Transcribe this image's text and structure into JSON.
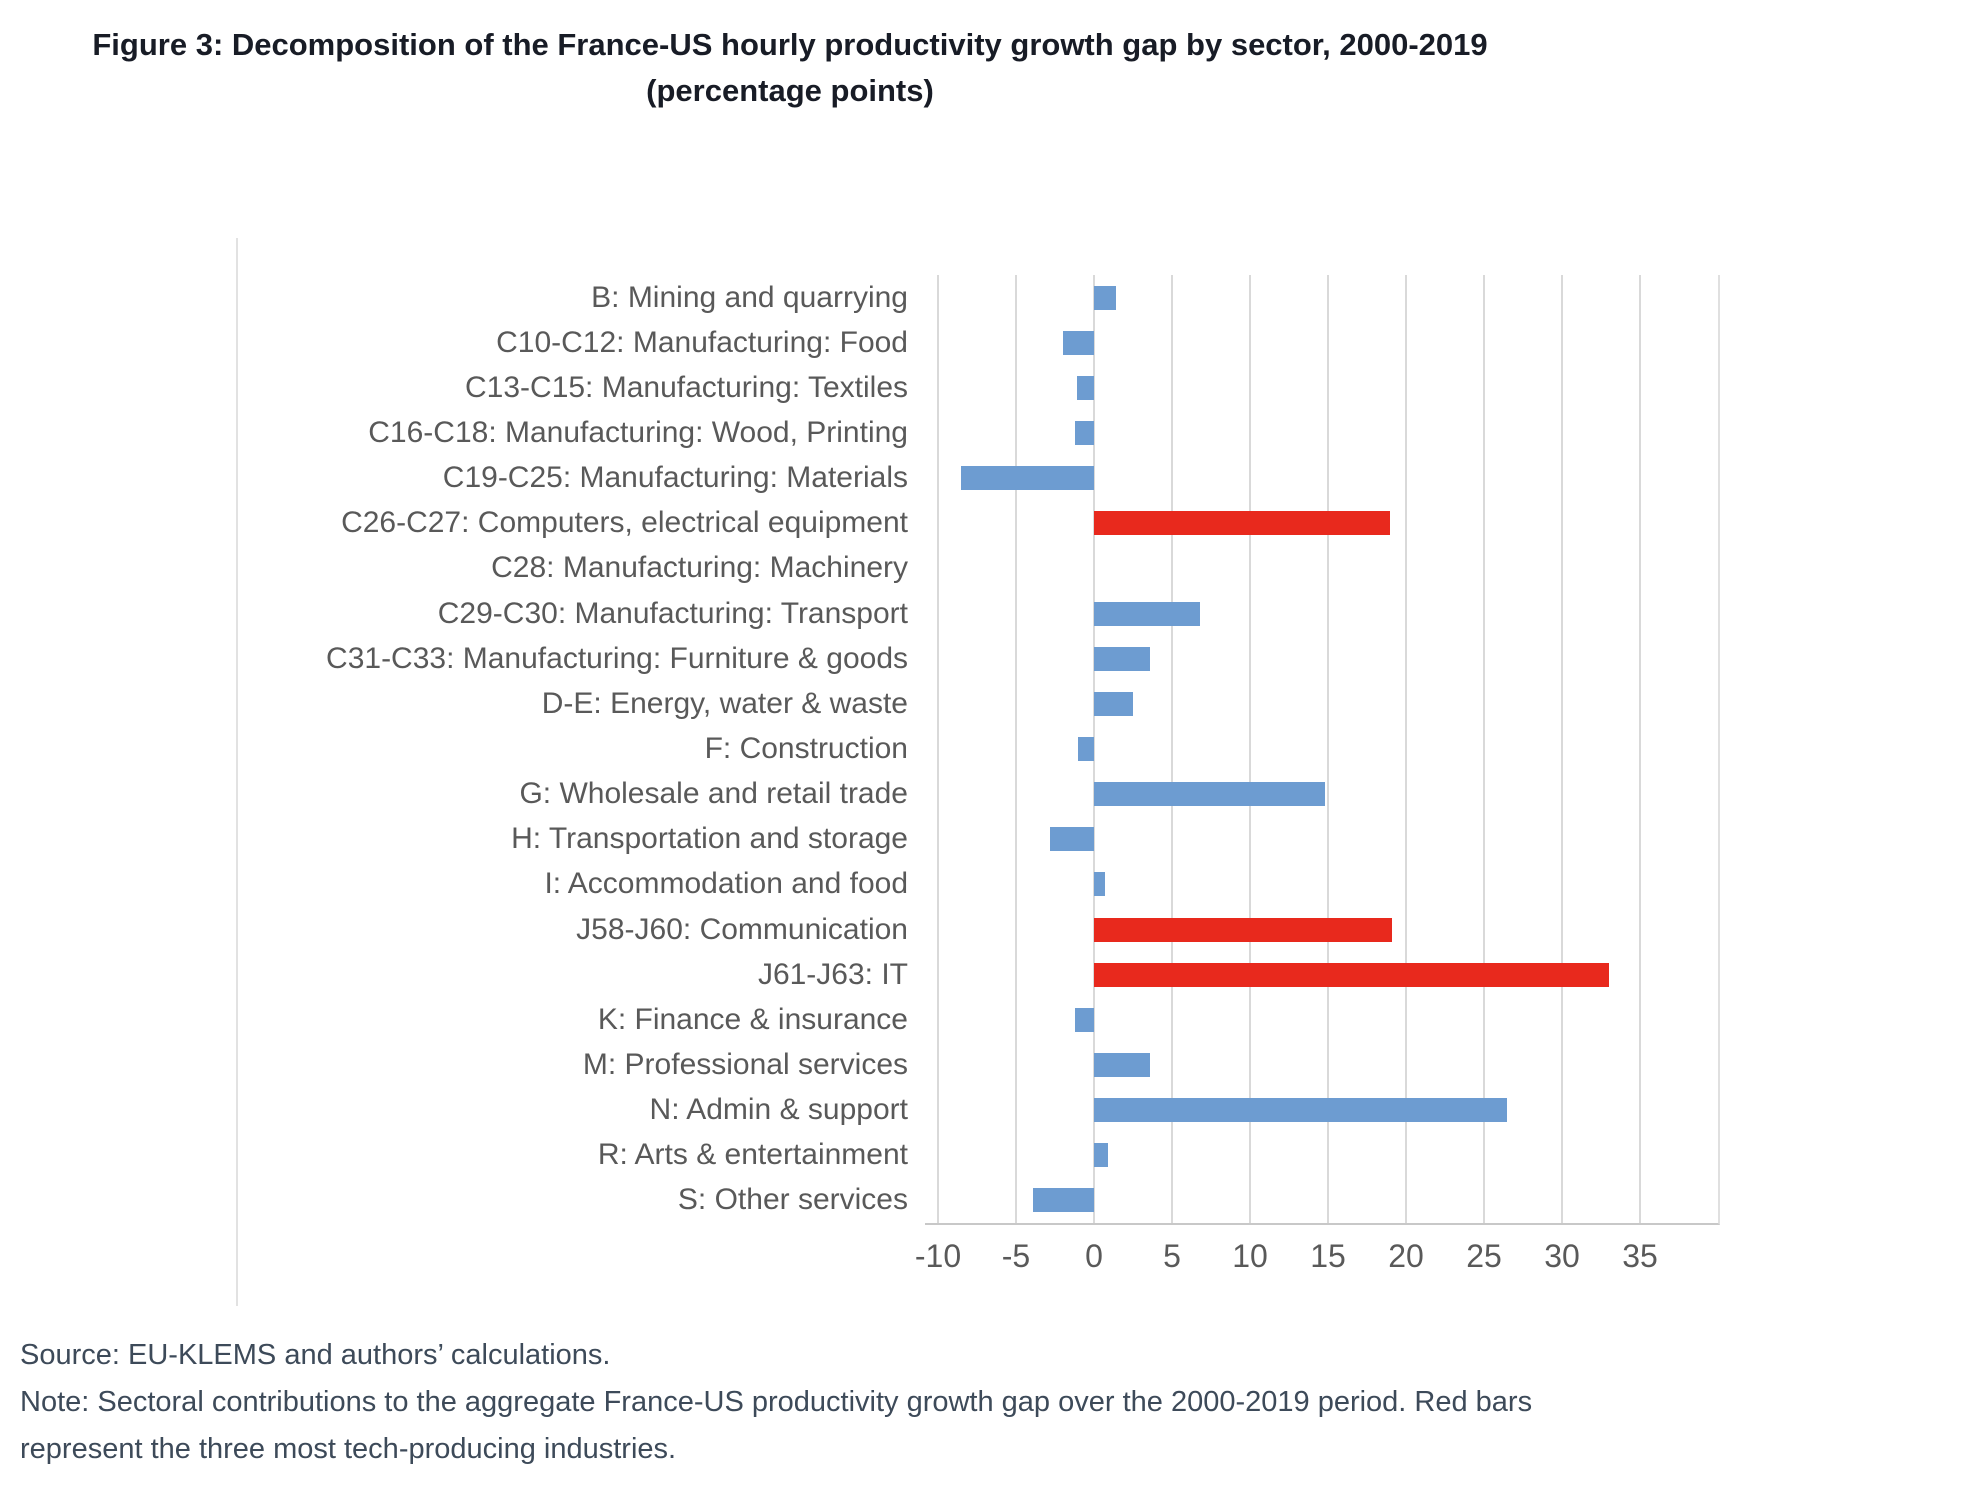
{
  "title": {
    "line1": "Figure 3: Decomposition of the France-US hourly productivity growth gap by sector, 2000-2019",
    "line2": "(percentage points)"
  },
  "footer": {
    "source": "Source: EU-KLEMS and authors’ calculations.",
    "note": "Note: Sectoral contributions to the aggregate France-US productivity growth gap over the 2000-2019 period. Red bars represent the three most tech-producing industries."
  },
  "colors": {
    "bar_blue": "#6d9cd1",
    "bar_red": "#e8291d",
    "gridline": "#d9d9d9",
    "axis_line": "#c8c8c8",
    "label_gray": "#595959",
    "title_color": "#181c26",
    "footer_color": "#3d4a59"
  },
  "chart_data": {
    "type": "bar",
    "orientation": "horizontal",
    "title": "Figure 3: Decomposition of the France-US hourly productivity growth gap by sector, 2000-2019 (percentage points)",
    "xlabel": "percentage points",
    "ylabel": "",
    "xlim": [
      -10,
      40
    ],
    "x_ticks": [
      -10,
      -5,
      0,
      5,
      10,
      15,
      20,
      25,
      30,
      35
    ],
    "grid": true,
    "legend": "none",
    "categories": [
      "B: Mining and quarrying",
      "C10-C12: Manufacturing: Food",
      "C13-C15: Manufacturing: Textiles",
      "C16-C18: Manufacturing: Wood, Printing",
      "C19-C25: Manufacturing: Materials",
      "C26-C27: Computers, electrical equipment",
      "C28: Manufacturing: Machinery",
      "C29-C30: Manufacturing: Transport",
      "C31-C33: Manufacturing: Furniture & goods",
      "D-E: Energy, water & waste",
      "F: Construction",
      "G: Wholesale and retail trade",
      "H: Transportation and storage",
      "I: Accommodation and food",
      "J58-J60: Communication",
      "J61-J63: IT",
      "K: Finance & insurance",
      "M: Professional services",
      "N: Admin & support",
      "R: Arts & entertainment",
      "S: Other services"
    ],
    "values": [
      1.4,
      -2.0,
      -1.1,
      -1.2,
      -8.5,
      19.0,
      0.0,
      6.8,
      3.6,
      2.5,
      -1.0,
      14.8,
      -2.8,
      0.7,
      19.1,
      33.0,
      -1.2,
      3.6,
      26.5,
      0.9,
      -3.9
    ],
    "red_indices": [
      5,
      14,
      15
    ],
    "red_meaning": "three most tech-producing industries"
  }
}
